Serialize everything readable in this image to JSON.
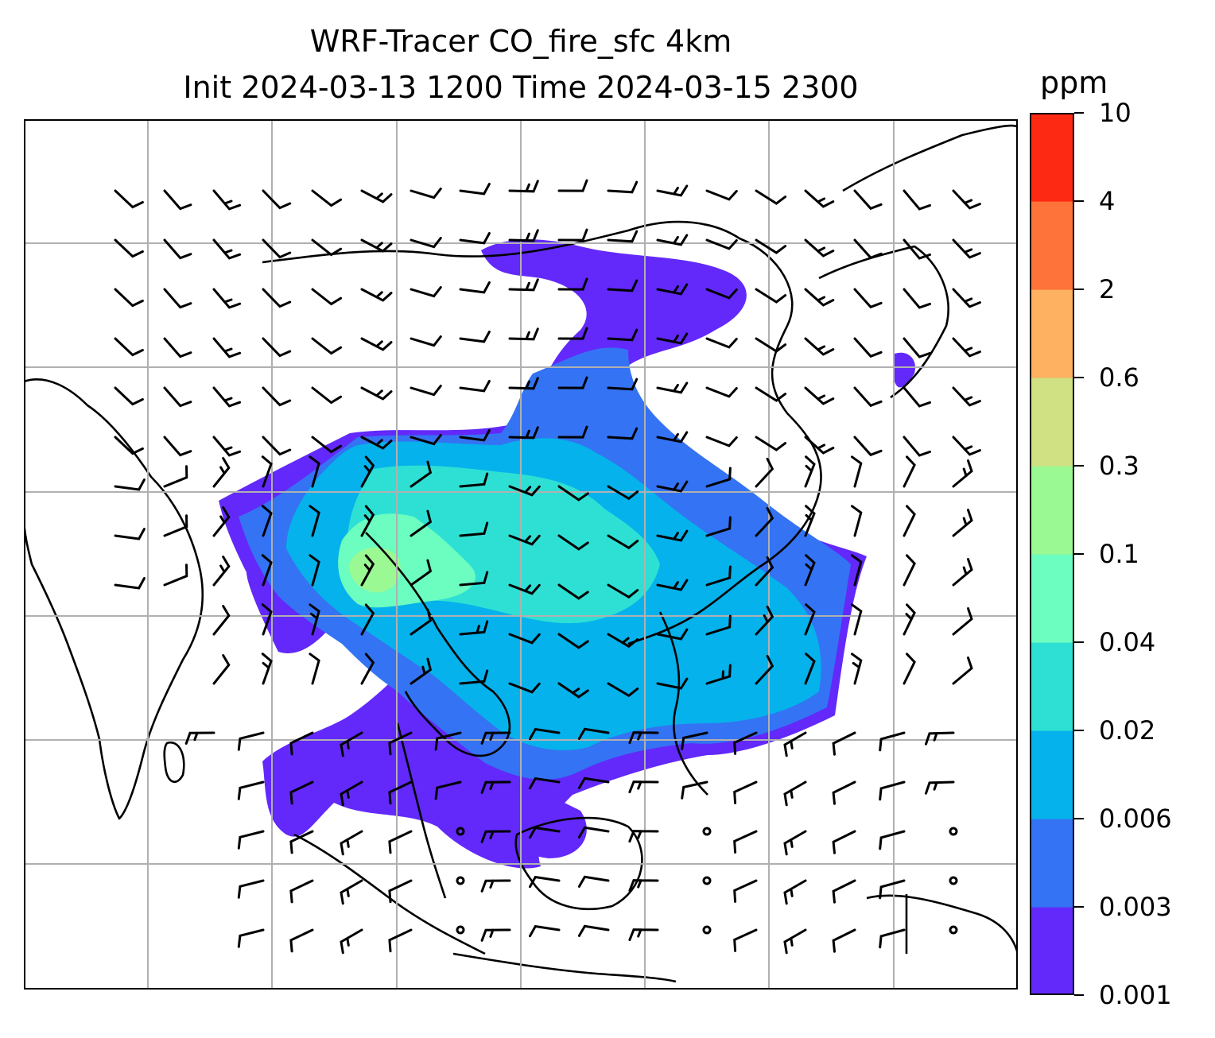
{
  "title": {
    "line1": "WRF-Tracer CO_fire_sfc 4km",
    "line2": "Init 2024-03-13 1200 Time 2024-03-15 2300"
  },
  "colorbar": {
    "unit": "ppm",
    "levels": [
      "0.001",
      "0.003",
      "0.006",
      "0.02",
      "0.04",
      "0.1",
      "0.3",
      "0.6",
      "2",
      "4",
      "10"
    ],
    "colors": [
      "#6229fa",
      "#3473f3",
      "#05b2eb",
      "#2ee0d4",
      "#6cfdc0",
      "#9bf993",
      "#cfe183",
      "#feb160",
      "#fe7339",
      "#fe2913"
    ]
  },
  "map": {
    "background": "#ffffff",
    "gridlines": "on",
    "grid_color": "#b0b0b0",
    "coastline_color": "#000000",
    "wind_barbs": "on"
  }
}
